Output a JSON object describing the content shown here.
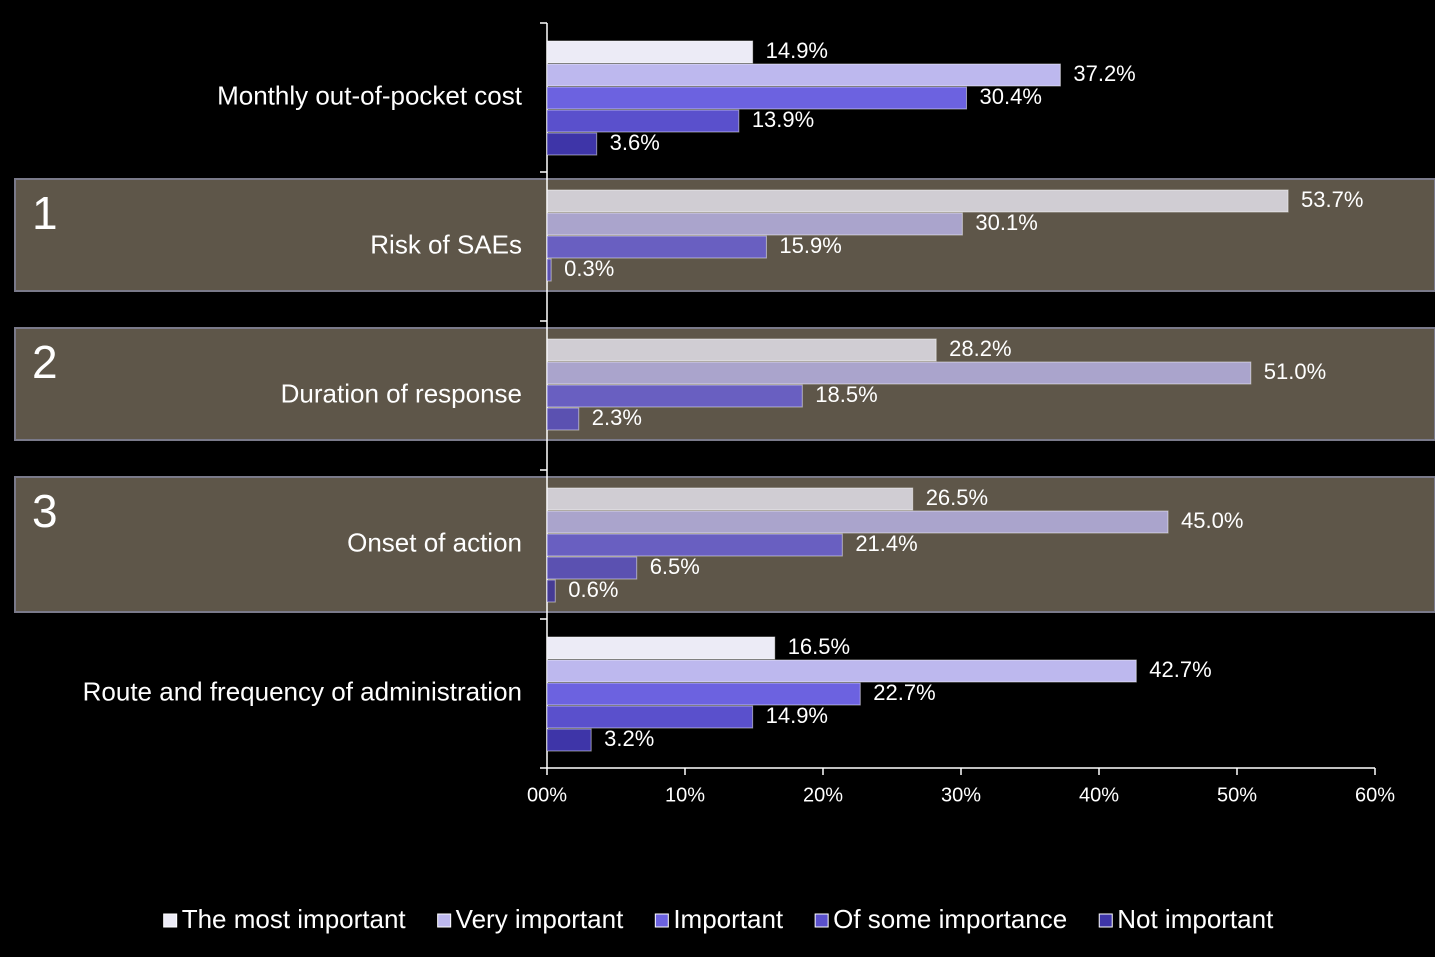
{
  "chart_data": {
    "type": "bar",
    "orientation": "horizontal",
    "categories": [
      "Monthly out-of-pocket cost",
      "Risk of SAEs",
      "Duration of response",
      "Onset of action",
      "Route and frequency of administration"
    ],
    "rank_labels": [
      null,
      "1",
      "2",
      "3",
      null
    ],
    "series": [
      {
        "name": "The most important",
        "color": "#ecebf6",
        "values": [
          14.9,
          53.7,
          28.2,
          26.5,
          16.5
        ],
        "value_labels": [
          "14.9%",
          "53.7%",
          "28.2%",
          "26.5%",
          "16.5%"
        ]
      },
      {
        "name": "Very important",
        "color": "#bdb8ee",
        "values": [
          37.2,
          30.1,
          51.0,
          45.0,
          42.7
        ],
        "value_labels": [
          "37.2%",
          "30.1%",
          "51.0%",
          "45.0%",
          "42.7%"
        ]
      },
      {
        "name": "Important",
        "color": "#6c62e0",
        "values": [
          30.4,
          15.9,
          18.5,
          21.4,
          22.7
        ],
        "value_labels": [
          "30.4%",
          "15.9%",
          "18.5%",
          "21.4%",
          "22.7%"
        ]
      },
      {
        "name": "Of some importance",
        "color": "#5a50cc",
        "values": [
          13.9,
          0.3,
          2.3,
          6.5,
          14.9
        ],
        "value_labels": [
          "13.9%",
          "0.3%",
          "2.3%",
          "6.5%",
          "14.9%"
        ]
      },
      {
        "name": "Not important",
        "color": "#3e35a8",
        "values": [
          3.6,
          null,
          null,
          0.6,
          3.2
        ],
        "value_labels": [
          "3.6%",
          null,
          null,
          "0.6%",
          "3.2%"
        ]
      }
    ],
    "xlim": [
      0,
      60
    ],
    "xticks": [
      {
        "value": 0,
        "label": "00%"
      },
      {
        "value": 10,
        "label": "10%"
      },
      {
        "value": 20,
        "label": "20%"
      },
      {
        "value": 30,
        "label": "30%"
      },
      {
        "value": 40,
        "label": "40%"
      },
      {
        "value": 50,
        "label": "50%"
      },
      {
        "value": 60,
        "label": "60%"
      }
    ],
    "legend": "bottom"
  }
}
